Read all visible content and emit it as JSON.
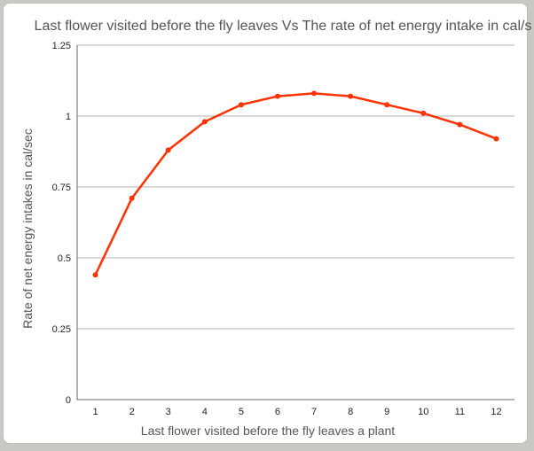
{
  "chart_data": {
    "type": "line",
    "title": "Last flower visited before the fly leaves  Vs The rate of net energy intake in cal/s",
    "xlabel": "Last flower visited before the fly leaves a plant",
    "ylabel": "Rate of net energy intakes in cal/sec",
    "categories": [
      "1",
      "2",
      "3",
      "4",
      "5",
      "6",
      "7",
      "8",
      "9",
      "10",
      "11",
      "12"
    ],
    "values": [
      0.44,
      0.71,
      0.88,
      0.98,
      1.04,
      1.07,
      1.08,
      1.07,
      1.04,
      1.01,
      0.97,
      0.92
    ],
    "ylim": [
      0,
      1.25
    ],
    "yticks": [
      "0",
      "0.25",
      "0.5",
      "0.75",
      "1",
      "1.25"
    ],
    "grid": true,
    "line_color": "#ff3300",
    "grid_color": "#b0b0b0"
  }
}
